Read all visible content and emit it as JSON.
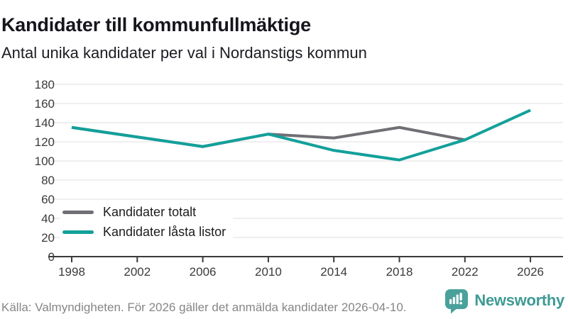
{
  "header": {
    "title": "Kandidater till kommunfullmäktige",
    "subtitle": "Antal unika kandidater per val i Nordanstigs kommun"
  },
  "chart_data": {
    "type": "line",
    "title": "Kandidater till kommunfullmäktige",
    "subtitle": "Antal unika kandidater per val i Nordanstigs kommun",
    "x": [
      1998,
      2002,
      2006,
      2010,
      2014,
      2018,
      2022,
      2026
    ],
    "series": [
      {
        "name": "Kandidater totalt",
        "color": "#6f6f74",
        "values": [
          135,
          125,
          115,
          128,
          124,
          135,
          122,
          null
        ]
      },
      {
        "name": "Kandidater låsta listor",
        "color": "#13a09a",
        "values": [
          135,
          125,
          115,
          128,
          111,
          101,
          122,
          153
        ]
      }
    ],
    "ylim": [
      0,
      180
    ],
    "y_ticks": [
      0,
      20,
      40,
      60,
      80,
      100,
      120,
      140,
      160,
      180
    ],
    "xlabel": "",
    "ylabel": "",
    "grid": true,
    "legend_position": "inside-bottom-left"
  },
  "footer": {
    "source": "Källa: Valmyndigheten. För 2026 gäller det anmälda kandidater 2026-04-10.",
    "brand": "Newsworthy"
  },
  "colors": {
    "accent_teal": "#13a09a",
    "series_gray": "#6f6f74",
    "gridline": "#eaeaea",
    "axis_line": "#3a3a3a",
    "logo_bubble_teal": "#4aa19b",
    "brand_text_teal": "#3f9b94"
  }
}
